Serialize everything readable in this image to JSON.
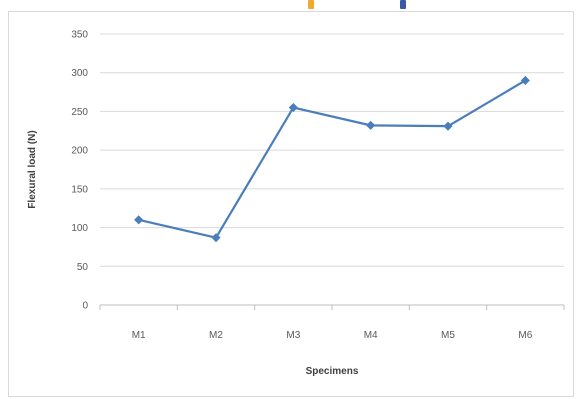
{
  "colors": {
    "series": "#4a7ebb",
    "grid": "#d9d9d9",
    "axis": "#bfbfbf",
    "top_marks": [
      "#f0a830",
      "#3a5aa8"
    ]
  },
  "chart_data": {
    "type": "line",
    "title": "",
    "xlabel": "Specimens",
    "ylabel": "Flexural load (N)",
    "categories": [
      "M1",
      "M2",
      "M3",
      "M4",
      "M5",
      "M6"
    ],
    "series": [
      {
        "values": [
          110,
          87,
          255,
          232,
          231,
          290
        ],
        "marker": "diamond"
      }
    ],
    "ylim": [
      0,
      350
    ],
    "yticks": [
      0,
      50,
      100,
      150,
      200,
      250,
      300,
      350
    ],
    "grid": true,
    "legend": "none"
  }
}
